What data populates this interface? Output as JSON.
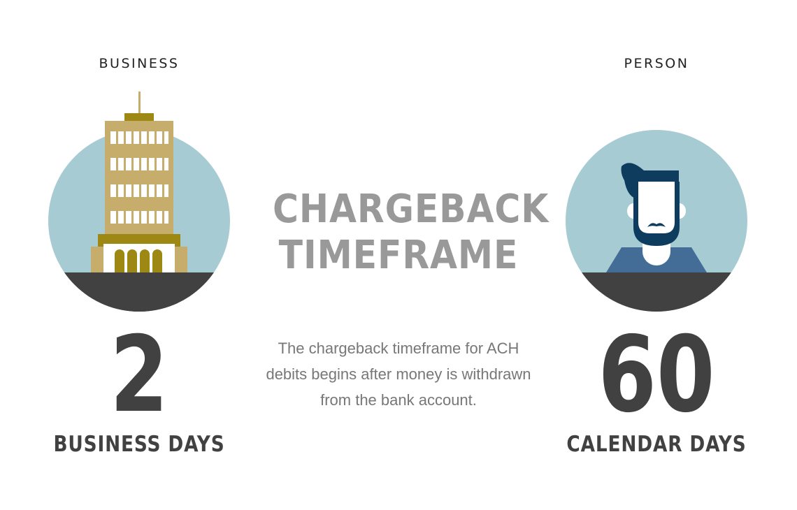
{
  "title": {
    "line1": "CHARGEBACK",
    "line2": "TIMEFRAME"
  },
  "description": "The chargeback timeframe for ACH debits begins after money is withdrawn from the bank account.",
  "business": {
    "label": "BUSINESS",
    "number": "2",
    "unit": "BUSINESS DAYS",
    "icon": "office-building-icon"
  },
  "person": {
    "label": "PERSON",
    "number": "60",
    "unit": "CALENDAR DAYS",
    "icon": "bearded-man-icon"
  },
  "colors": {
    "circle": "#a7cbd2",
    "ground": "#414141",
    "building": "#c6ad6b",
    "building_accent": "#9c8812",
    "hair": "#0e3c5e",
    "shirt": "#436d97",
    "title": "#999999",
    "text": "#777777",
    "number": "#414141"
  }
}
